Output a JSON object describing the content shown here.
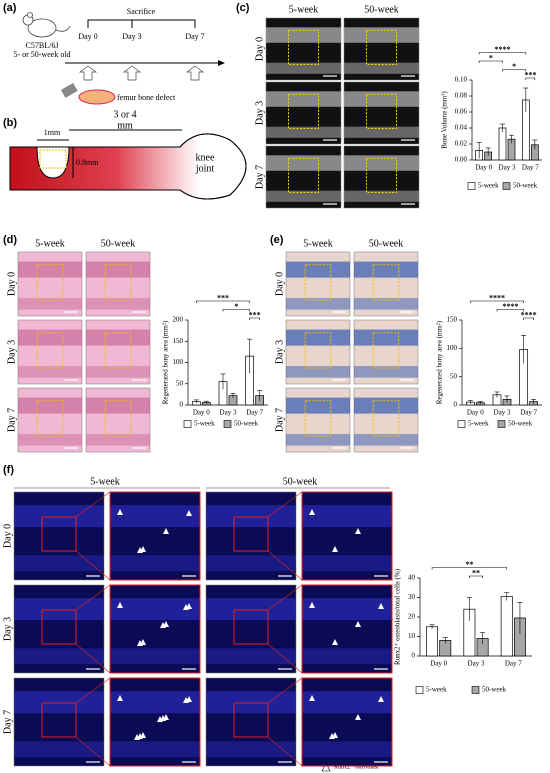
{
  "panel_labels": [
    "(a)",
    "(b)",
    "(c)",
    "(d)",
    "(e)",
    "(f)"
  ],
  "schematic": {
    "mouse_label": "C57BL/6J",
    "age_label": "5- or 50-week old",
    "event": "Sacrifice",
    "timepoints": [
      "Day 0",
      "Day 3",
      "Day 7"
    ],
    "defect_label": "femur bone defect",
    "width_label": "1mm",
    "distance_label": [
      "3 or 4",
      "mm"
    ],
    "depth_label": "0.8mm",
    "joint_label": [
      "knee",
      "joint"
    ]
  },
  "image_grids": {
    "columns": [
      "5-week",
      "50-week"
    ],
    "rows": [
      "Day 0",
      "Day 3",
      "Day 7"
    ],
    "marker_legend": "Runx2⁺ osteoblast"
  },
  "chart_data": [
    {
      "type": "bar",
      "y_label": "Bone Volume (mm³)",
      "categories": [
        "Day 0",
        "Day 3",
        "Day 7"
      ],
      "series": [
        {
          "name": "5-week",
          "color": "#ffffff",
          "values": [
            0.012,
            0.04,
            0.075
          ],
          "errors": [
            0.01,
            0.005,
            0.015
          ]
        },
        {
          "name": "50-week",
          "color": "#a6a6a6",
          "values": [
            0.01,
            0.026,
            0.019
          ],
          "errors": [
            0.005,
            0.005,
            0.006
          ]
        }
      ],
      "ylim": [
        0,
        0.1
      ],
      "yticks": [
        {
          "value": 0,
          "label": "0.00"
        },
        {
          "value": 0.02,
          "label": "0.02"
        },
        {
          "value": 0.04,
          "label": "0.04"
        },
        {
          "value": 0.06,
          "label": "0.06"
        },
        {
          "value": 0.08,
          "label": "0.08"
        },
        {
          "value": 0.1,
          "label": "0.10"
        }
      ],
      "annotations": [
        {
          "label": "****",
          "from": [
            0,
            0
          ],
          "to": [
            0,
            2
          ]
        },
        {
          "label": "*",
          "from": [
            0,
            0
          ],
          "to": [
            0,
            1
          ]
        },
        {
          "label": "*",
          "from": [
            0,
            1
          ],
          "to": [
            0,
            2
          ]
        },
        {
          "label": "***",
          "from": [
            0,
            2
          ],
          "to": [
            1,
            2
          ]
        }
      ]
    },
    {
      "type": "bar",
      "y_label": "Regenerated bony area (mm²)",
      "categories": [
        "Day 0",
        "Day 3",
        "Day 7"
      ],
      "series": [
        {
          "name": "5-week",
          "color": "#ffffff",
          "values": [
            8,
            55,
            115
          ],
          "errors": [
            4,
            18,
            40
          ]
        },
        {
          "name": "50-week",
          "color": "#a6a6a6",
          "values": [
            6,
            22,
            22
          ],
          "errors": [
            3,
            5,
            12
          ]
        }
      ],
      "ylim": [
        0,
        200
      ],
      "yticks": [
        0,
        50,
        100,
        150,
        200
      ],
      "annotations": [
        {
          "label": "***",
          "from": [
            0,
            0
          ],
          "to": [
            0,
            2
          ]
        },
        {
          "label": "*",
          "from": [
            0,
            1
          ],
          "to": [
            0,
            2
          ]
        },
        {
          "label": "***",
          "from": [
            0,
            2
          ],
          "to": [
            1,
            2
          ]
        }
      ]
    },
    {
      "type": "bar",
      "y_label": "Regenerated bony area (mm²)",
      "categories": [
        "Day 0",
        "Day 3",
        "Day 7"
      ],
      "series": [
        {
          "name": "5-week",
          "color": "#ffffff",
          "values": [
            5,
            18,
            98
          ],
          "errors": [
            3,
            5,
            25
          ]
        },
        {
          "name": "50-week",
          "color": "#a6a6a6",
          "values": [
            4,
            10,
            6
          ],
          "errors": [
            2,
            6,
            4
          ]
        }
      ],
      "ylim": [
        0,
        150
      ],
      "yticks": [
        0,
        50,
        100,
        150
      ],
      "annotations": [
        {
          "label": "****",
          "from": [
            0,
            0
          ],
          "to": [
            0,
            2
          ]
        },
        {
          "label": "****",
          "from": [
            0,
            1
          ],
          "to": [
            0,
            2
          ]
        },
        {
          "label": "****",
          "from": [
            0,
            2
          ],
          "to": [
            1,
            2
          ]
        }
      ]
    },
    {
      "type": "bar",
      "y_label": "Runx2⁺ osteoblasts/total cells (%)",
      "categories": [
        "Day 0",
        "Day 3",
        "Day 7"
      ],
      "series": [
        {
          "name": "5-week",
          "color": "#ffffff",
          "values": [
            15,
            24,
            30.5
          ],
          "errors": [
            1,
            6,
            2
          ]
        },
        {
          "name": "50-week",
          "color": "#a6a6a6",
          "values": [
            8,
            9,
            19.5
          ],
          "errors": [
            1.5,
            3,
            8
          ]
        }
      ],
      "ylim": [
        0,
        40
      ],
      "yticks": [
        0,
        10,
        20,
        30,
        40
      ],
      "annotations": [
        {
          "label": "**",
          "from": [
            0,
            0
          ],
          "to": [
            0,
            2
          ]
        },
        {
          "label": "**",
          "from": [
            0,
            1
          ],
          "to": [
            1,
            1
          ]
        }
      ]
    }
  ]
}
